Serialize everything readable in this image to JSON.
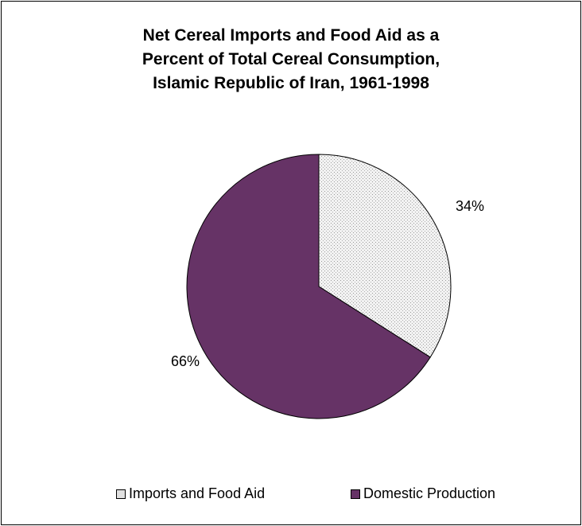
{
  "chart_data": {
    "type": "pie",
    "title_lines": [
      "Net Cereal Imports and Food Aid as a",
      "Percent of Total Cereal Consumption,",
      "Islamic Republic of Iran, 1961-1998"
    ],
    "slices": [
      {
        "label": "Imports and Food Aid",
        "value": 34,
        "data_label": "34%",
        "color": "#e6e6e6",
        "pattern": "dotted"
      },
      {
        "label": "Domestic Production",
        "value": 66,
        "data_label": "66%",
        "color": "#663366",
        "pattern": "solid"
      }
    ],
    "legend_position": "bottom"
  }
}
